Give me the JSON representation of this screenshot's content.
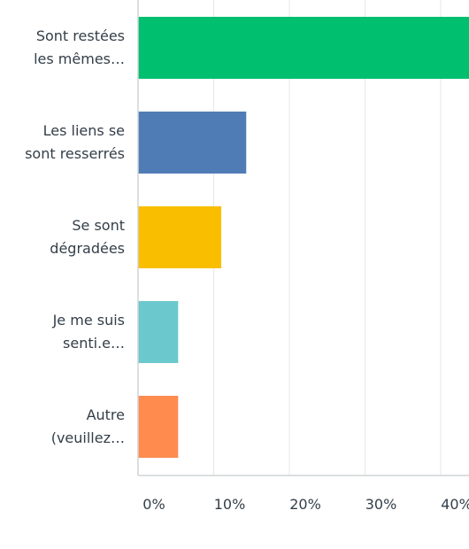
{
  "chart_data": {
    "type": "bar",
    "orientation": "horizontal",
    "categories": [
      [
        "Sont restées",
        "les mêmes…"
      ],
      [
        "Les liens se",
        "sont resserrés"
      ],
      [
        "Se sont",
        "dégradées"
      ],
      [
        "Je me suis",
        "senti.e…"
      ],
      [
        "Autre",
        "(veuillez…"
      ]
    ],
    "values": [
      46.0,
      14.3,
      11.0,
      5.3,
      5.3
    ],
    "colors": [
      "#00bf6f",
      "#507cb6",
      "#f9be00",
      "#6bc8cd",
      "#ff8b4f"
    ],
    "xlim": [
      0,
      43.7
    ],
    "xticks": [
      0,
      10,
      20,
      30,
      40
    ],
    "xtick_labels": [
      "0%",
      "10%",
      "20%",
      "30%",
      "40%"
    ],
    "grid": true,
    "title": "",
    "xlabel": "",
    "ylabel": ""
  }
}
